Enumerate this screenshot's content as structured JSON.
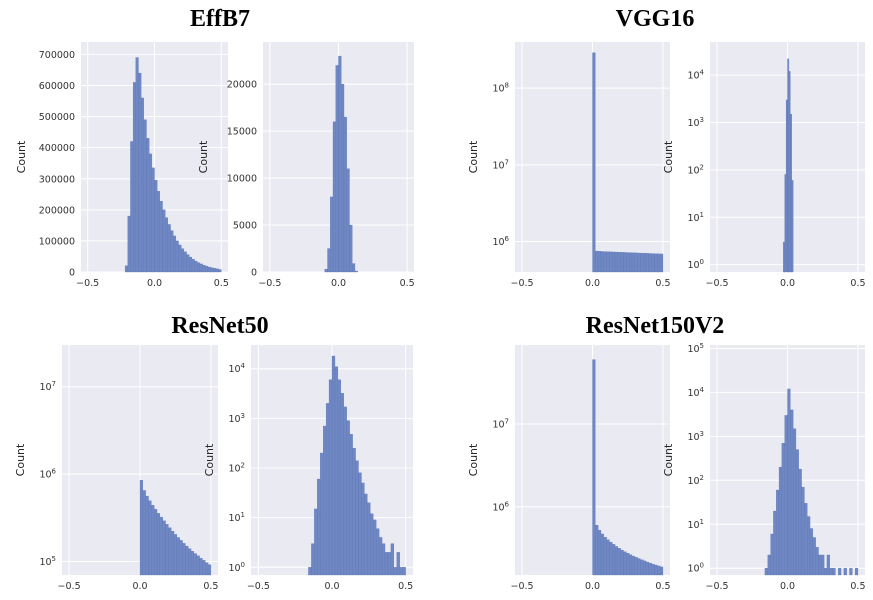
{
  "colors": {
    "axes_bg": "#eaeaf2",
    "grid": "#ffffff",
    "bar": "#6f87c2",
    "bar_edge": "#5a73b3"
  },
  "chart_data": [
    {
      "group": "EffB7",
      "type": "bar",
      "scale": "linear",
      "grid": true,
      "xlabel": "",
      "ylabel": "Count",
      "xlim": [
        -0.55,
        0.55
      ],
      "ylim": [
        0,
        740000
      ],
      "xticks": [
        "−0.5",
        "0.0",
        "0.5"
      ],
      "xtick_values": [
        -0.5,
        0,
        0.5
      ],
      "yticks": [
        "0",
        "100000",
        "200000",
        "300000",
        "400000",
        "500000",
        "600000",
        "700000"
      ],
      "ytick_values": [
        0,
        100000,
        200000,
        300000,
        400000,
        500000,
        600000,
        700000
      ],
      "bins": [
        {
          "x": -0.22,
          "y": 20000
        },
        {
          "x": -0.2,
          "y": 180000
        },
        {
          "x": -0.18,
          "y": 420000
        },
        {
          "x": -0.16,
          "y": 610000
        },
        {
          "x": -0.14,
          "y": 690000
        },
        {
          "x": -0.12,
          "y": 640000
        },
        {
          "x": -0.1,
          "y": 560000
        },
        {
          "x": -0.08,
          "y": 490000
        },
        {
          "x": -0.06,
          "y": 430000
        },
        {
          "x": -0.04,
          "y": 380000
        },
        {
          "x": -0.02,
          "y": 335000
        },
        {
          "x": 0.0,
          "y": 295000
        },
        {
          "x": 0.02,
          "y": 260000
        },
        {
          "x": 0.04,
          "y": 228000
        },
        {
          "x": 0.06,
          "y": 200000
        },
        {
          "x": 0.08,
          "y": 175000
        },
        {
          "x": 0.1,
          "y": 153000
        },
        {
          "x": 0.12,
          "y": 133000
        },
        {
          "x": 0.14,
          "y": 116000
        },
        {
          "x": 0.16,
          "y": 100000
        },
        {
          "x": 0.18,
          "y": 87000
        },
        {
          "x": 0.2,
          "y": 75000
        },
        {
          "x": 0.22,
          "y": 65000
        },
        {
          "x": 0.24,
          "y": 56000
        },
        {
          "x": 0.26,
          "y": 48000
        },
        {
          "x": 0.28,
          "y": 41000
        },
        {
          "x": 0.3,
          "y": 35000
        },
        {
          "x": 0.32,
          "y": 30000
        },
        {
          "x": 0.34,
          "y": 26000
        },
        {
          "x": 0.36,
          "y": 22000
        },
        {
          "x": 0.38,
          "y": 19000
        },
        {
          "x": 0.4,
          "y": 16000
        },
        {
          "x": 0.42,
          "y": 14000
        },
        {
          "x": 0.44,
          "y": 12000
        },
        {
          "x": 0.46,
          "y": 10000
        },
        {
          "x": 0.48,
          "y": 8000
        }
      ]
    },
    {
      "group": "EffB7",
      "type": "bar",
      "scale": "linear",
      "grid": true,
      "xlabel": "",
      "ylabel": "Count",
      "xlim": [
        -0.55,
        0.55
      ],
      "ylim": [
        0,
        24500
      ],
      "xticks": [
        "−0.5",
        "0.0",
        "0.5"
      ],
      "xtick_values": [
        -0.5,
        0,
        0.5
      ],
      "yticks": [
        "0",
        "5000",
        "10000",
        "15000",
        "20000"
      ],
      "ytick_values": [
        0,
        5000,
        10000,
        15000,
        20000
      ],
      "bins": [
        {
          "x": -0.1,
          "y": 300
        },
        {
          "x": -0.08,
          "y": 2500
        },
        {
          "x": -0.06,
          "y": 8000
        },
        {
          "x": -0.04,
          "y": 16000
        },
        {
          "x": -0.02,
          "y": 22000
        },
        {
          "x": 0.0,
          "y": 23000
        },
        {
          "x": 0.02,
          "y": 20000
        },
        {
          "x": 0.04,
          "y": 16500
        },
        {
          "x": 0.06,
          "y": 11000
        },
        {
          "x": 0.08,
          "y": 5000
        },
        {
          "x": 0.1,
          "y": 900
        },
        {
          "x": 0.12,
          "y": 100
        }
      ]
    },
    {
      "group": "VGG16",
      "type": "bar",
      "scale": "log",
      "grid": true,
      "xlabel": "",
      "ylabel": "Count",
      "xlim": [
        -0.55,
        0.55
      ],
      "ylim": [
        400000,
        400000000
      ],
      "xticks": [
        "−0.5",
        "0.0",
        "0.5"
      ],
      "xtick_values": [
        -0.5,
        0,
        0.5
      ],
      "yticks": [
        "10^6",
        "10^7",
        "10^8"
      ],
      "ytick_values": [
        1000000,
        10000000,
        100000000
      ],
      "bins": [
        {
          "x": 0.0,
          "y": 290000000
        },
        {
          "x": 0.02,
          "y": 750000
        },
        {
          "x": 0.04,
          "y": 745000
        },
        {
          "x": 0.06,
          "y": 740000
        },
        {
          "x": 0.08,
          "y": 738000
        },
        {
          "x": 0.1,
          "y": 735000
        },
        {
          "x": 0.12,
          "y": 732000
        },
        {
          "x": 0.14,
          "y": 730000
        },
        {
          "x": 0.16,
          "y": 728000
        },
        {
          "x": 0.18,
          "y": 725000
        },
        {
          "x": 0.2,
          "y": 722000
        },
        {
          "x": 0.22,
          "y": 720000
        },
        {
          "x": 0.24,
          "y": 717000
        },
        {
          "x": 0.26,
          "y": 715000
        },
        {
          "x": 0.28,
          "y": 712000
        },
        {
          "x": 0.3,
          "y": 710000
        },
        {
          "x": 0.32,
          "y": 707000
        },
        {
          "x": 0.34,
          "y": 705000
        },
        {
          "x": 0.36,
          "y": 702000
        },
        {
          "x": 0.38,
          "y": 700000
        },
        {
          "x": 0.4,
          "y": 697000
        },
        {
          "x": 0.42,
          "y": 695000
        },
        {
          "x": 0.44,
          "y": 692000
        },
        {
          "x": 0.46,
          "y": 690000
        },
        {
          "x": 0.48,
          "y": 688000
        }
      ]
    },
    {
      "group": "VGG16",
      "type": "bar",
      "scale": "log",
      "grid": true,
      "xlabel": "",
      "ylabel": "Count",
      "xlim": [
        -0.55,
        0.55
      ],
      "ylim": [
        0.7,
        50000
      ],
      "xticks": [
        "−0.5",
        "0.0",
        "0.5"
      ],
      "xtick_values": [
        -0.5,
        0,
        0.5
      ],
      "yticks": [
        "10^0",
        "10^1",
        "10^2",
        "10^3",
        "10^4"
      ],
      "ytick_values": [
        1,
        10,
        100,
        1000,
        10000
      ],
      "bins": [
        {
          "x": -0.03,
          "y": 3
        },
        {
          "x": -0.02,
          "y": 80
        },
        {
          "x": -0.01,
          "y": 3000
        },
        {
          "x": 0.0,
          "y": 22000
        },
        {
          "x": 0.01,
          "y": 12000
        },
        {
          "x": 0.02,
          "y": 1500
        },
        {
          "x": 0.03,
          "y": 60
        }
      ]
    },
    {
      "group": "ResNet50",
      "type": "bar",
      "scale": "log",
      "grid": true,
      "xlabel": "",
      "ylabel": "Count",
      "xlim": [
        -0.55,
        0.55
      ],
      "ylim": [
        70000,
        30000000
      ],
      "xticks": [
        "−0.5",
        "0.0",
        "0.5"
      ],
      "xtick_values": [
        -0.5,
        0,
        0.5
      ],
      "yticks": [
        "10^5",
        "10^6",
        "10^7"
      ],
      "ytick_values": [
        100000,
        1000000,
        10000000
      ],
      "bins": [
        {
          "x": 0.0,
          "y": 850000
        },
        {
          "x": 0.02,
          "y": 650000
        },
        {
          "x": 0.04,
          "y": 560000
        },
        {
          "x": 0.06,
          "y": 495000
        },
        {
          "x": 0.08,
          "y": 440000
        },
        {
          "x": 0.1,
          "y": 395000
        },
        {
          "x": 0.12,
          "y": 355000
        },
        {
          "x": 0.14,
          "y": 322000
        },
        {
          "x": 0.16,
          "y": 292000
        },
        {
          "x": 0.18,
          "y": 266000
        },
        {
          "x": 0.2,
          "y": 243000
        },
        {
          "x": 0.22,
          "y": 222000
        },
        {
          "x": 0.24,
          "y": 204000
        },
        {
          "x": 0.26,
          "y": 188000
        },
        {
          "x": 0.28,
          "y": 174000
        },
        {
          "x": 0.3,
          "y": 161000
        },
        {
          "x": 0.32,
          "y": 150000
        },
        {
          "x": 0.34,
          "y": 140000
        },
        {
          "x": 0.36,
          "y": 131000
        },
        {
          "x": 0.38,
          "y": 123000
        },
        {
          "x": 0.4,
          "y": 116000
        },
        {
          "x": 0.42,
          "y": 109000
        },
        {
          "x": 0.44,
          "y": 103000
        },
        {
          "x": 0.46,
          "y": 97000
        },
        {
          "x": 0.48,
          "y": 92000
        }
      ]
    },
    {
      "group": "ResNet50",
      "type": "bar",
      "scale": "log",
      "grid": true,
      "xlabel": "",
      "ylabel": "Count",
      "xlim": [
        -0.55,
        0.55
      ],
      "ylim": [
        0.7,
        30000
      ],
      "xticks": [
        "−0.5",
        "0.0",
        "0.5"
      ],
      "xtick_values": [
        -0.5,
        0,
        0.5
      ],
      "yticks": [
        "10^0",
        "10^1",
        "10^2",
        "10^3",
        "10^4"
      ],
      "ytick_values": [
        1,
        10,
        100,
        1000,
        10000
      ],
      "bins": [
        {
          "x": -0.16,
          "y": 1
        },
        {
          "x": -0.14,
          "y": 3
        },
        {
          "x": -0.12,
          "y": 15
        },
        {
          "x": -0.1,
          "y": 60
        },
        {
          "x": -0.08,
          "y": 200
        },
        {
          "x": -0.06,
          "y": 700
        },
        {
          "x": -0.04,
          "y": 2000
        },
        {
          "x": -0.02,
          "y": 6000
        },
        {
          "x": 0.0,
          "y": 18000
        },
        {
          "x": 0.02,
          "y": 11000
        },
        {
          "x": 0.04,
          "y": 6000
        },
        {
          "x": 0.06,
          "y": 3200
        },
        {
          "x": 0.08,
          "y": 1700
        },
        {
          "x": 0.1,
          "y": 900
        },
        {
          "x": 0.12,
          "y": 480
        },
        {
          "x": 0.14,
          "y": 250
        },
        {
          "x": 0.16,
          "y": 140
        },
        {
          "x": 0.18,
          "y": 80
        },
        {
          "x": 0.2,
          "y": 50
        },
        {
          "x": 0.22,
          "y": 30
        },
        {
          "x": 0.24,
          "y": 20
        },
        {
          "x": 0.26,
          "y": 12
        },
        {
          "x": 0.28,
          "y": 9
        },
        {
          "x": 0.3,
          "y": 6
        },
        {
          "x": 0.32,
          "y": 4
        },
        {
          "x": 0.34,
          "y": 3
        },
        {
          "x": 0.36,
          "y": 2
        },
        {
          "x": 0.38,
          "y": 2
        },
        {
          "x": 0.4,
          "y": 3
        },
        {
          "x": 0.42,
          "y": 1
        },
        {
          "x": 0.44,
          "y": 2
        },
        {
          "x": 0.46,
          "y": 1
        },
        {
          "x": 0.48,
          "y": 1
        }
      ]
    },
    {
      "group": "ResNet150V2",
      "type": "bar",
      "scale": "log",
      "grid": true,
      "xlabel": "",
      "ylabel": "Count",
      "xlim": [
        -0.55,
        0.55
      ],
      "ylim": [
        150000,
        90000000
      ],
      "xticks": [
        "−0.5",
        "0.0",
        "0.5"
      ],
      "xtick_values": [
        -0.5,
        0,
        0.5
      ],
      "yticks": [
        "10^6",
        "10^7"
      ],
      "ytick_values": [
        1000000,
        10000000
      ],
      "bins": [
        {
          "x": 0.0,
          "y": 60000000
        },
        {
          "x": 0.02,
          "y": 600000
        },
        {
          "x": 0.04,
          "y": 520000
        },
        {
          "x": 0.06,
          "y": 470000
        },
        {
          "x": 0.08,
          "y": 430000
        },
        {
          "x": 0.1,
          "y": 400000
        },
        {
          "x": 0.12,
          "y": 375000
        },
        {
          "x": 0.14,
          "y": 352000
        },
        {
          "x": 0.16,
          "y": 332000
        },
        {
          "x": 0.18,
          "y": 315000
        },
        {
          "x": 0.2,
          "y": 300000
        },
        {
          "x": 0.22,
          "y": 287000
        },
        {
          "x": 0.24,
          "y": 275000
        },
        {
          "x": 0.26,
          "y": 264000
        },
        {
          "x": 0.28,
          "y": 254000
        },
        {
          "x": 0.3,
          "y": 245000
        },
        {
          "x": 0.32,
          "y": 237000
        },
        {
          "x": 0.34,
          "y": 229000
        },
        {
          "x": 0.36,
          "y": 222000
        },
        {
          "x": 0.38,
          "y": 215000
        },
        {
          "x": 0.4,
          "y": 209000
        },
        {
          "x": 0.42,
          "y": 203000
        },
        {
          "x": 0.44,
          "y": 198000
        },
        {
          "x": 0.46,
          "y": 193000
        },
        {
          "x": 0.48,
          "y": 188000
        }
      ]
    },
    {
      "group": "ResNet150V2",
      "type": "bar",
      "scale": "log",
      "grid": true,
      "xlabel": "",
      "ylabel": "Count",
      "xlim": [
        -0.55,
        0.55
      ],
      "ylim": [
        0.7,
        120000
      ],
      "xticks": [
        "−0.5",
        "0.0",
        "0.5"
      ],
      "xtick_values": [
        -0.5,
        0,
        0.5
      ],
      "yticks": [
        "10^0",
        "10^1",
        "10^2",
        "10^3",
        "10^4",
        "10^5"
      ],
      "ytick_values": [
        1,
        10,
        100,
        1000,
        10000,
        100000
      ],
      "bins": [
        {
          "x": -0.16,
          "y": 1
        },
        {
          "x": -0.14,
          "y": 2
        },
        {
          "x": -0.12,
          "y": 6
        },
        {
          "x": -0.1,
          "y": 20
        },
        {
          "x": -0.08,
          "y": 60
        },
        {
          "x": -0.06,
          "y": 200
        },
        {
          "x": -0.04,
          "y": 700
        },
        {
          "x": -0.02,
          "y": 3000
        },
        {
          "x": 0.0,
          "y": 12000
        },
        {
          "x": 0.02,
          "y": 4000
        },
        {
          "x": 0.04,
          "y": 1500
        },
        {
          "x": 0.06,
          "y": 500
        },
        {
          "x": 0.08,
          "y": 180
        },
        {
          "x": 0.1,
          "y": 70
        },
        {
          "x": 0.12,
          "y": 30
        },
        {
          "x": 0.14,
          "y": 15
        },
        {
          "x": 0.16,
          "y": 8
        },
        {
          "x": 0.18,
          "y": 5
        },
        {
          "x": 0.2,
          "y": 3
        },
        {
          "x": 0.22,
          "y": 2
        },
        {
          "x": 0.24,
          "y": 2
        },
        {
          "x": 0.26,
          "y": 1
        },
        {
          "x": 0.28,
          "y": 2
        },
        {
          "x": 0.3,
          "y": 1
        },
        {
          "x": 0.32,
          "y": 1
        },
        {
          "x": 0.36,
          "y": 1
        },
        {
          "x": 0.4,
          "y": 1
        },
        {
          "x": 0.44,
          "y": 1
        },
        {
          "x": 0.48,
          "y": 1
        }
      ]
    }
  ],
  "titles": [
    "EffB7",
    "VGG16",
    "ResNet50",
    "ResNet150V2"
  ]
}
